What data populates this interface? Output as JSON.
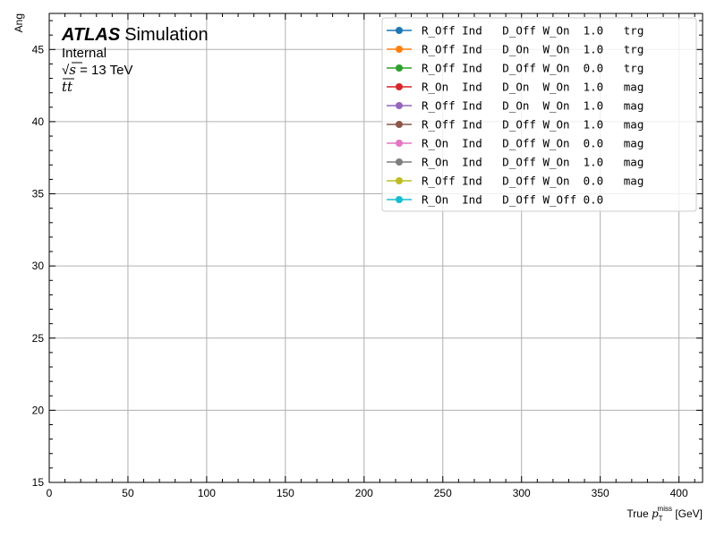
{
  "chart_data": {
    "type": "line",
    "xlabel_prefix": "True ",
    "xlabel_symbol": "p",
    "xlabel_sub": "T",
    "xlabel_sup": "miss",
    "xlabel_suffix": " [GeV]",
    "ylabel": "Ang",
    "xlim": [
      0,
      415
    ],
    "ylim": [
      15,
      47.5
    ],
    "x_ticks": [
      0,
      50,
      100,
      150,
      200,
      250,
      300,
      350,
      400
    ],
    "y_ticks": [
      15,
      20,
      25,
      30,
      35,
      40,
      45
    ],
    "grid": true,
    "legend_position": "top-right",
    "series": [
      {
        "name": "R_Off Ind   D_Off W_On  1.0   trg",
        "color": "#1f77b4",
        "values": []
      },
      {
        "name": "R_Off Ind   D_On  W_On  1.0   trg",
        "color": "#ff7f0e",
        "values": []
      },
      {
        "name": "R_Off Ind   D_Off W_On  0.0   trg",
        "color": "#2ca02c",
        "values": []
      },
      {
        "name": "R_On  Ind   D_On  W_On  1.0   mag",
        "color": "#d62728",
        "values": []
      },
      {
        "name": "R_Off Ind   D_On  W_On  1.0   mag",
        "color": "#9467bd",
        "values": []
      },
      {
        "name": "R_Off Ind   D_Off W_On  1.0   mag",
        "color": "#8c564b",
        "values": []
      },
      {
        "name": "R_On  Ind   D_Off W_On  0.0   mag",
        "color": "#e377c2",
        "values": []
      },
      {
        "name": "R_On  Ind   D_Off W_On  1.0   mag",
        "color": "#7f7f7f",
        "values": []
      },
      {
        "name": "R_Off Ind   D_Off W_On  0.0   mag",
        "color": "#bcbd22",
        "values": []
      },
      {
        "name": "R_On  Ind   D_Off W_Off 0.0",
        "color": "#17becf",
        "values": []
      }
    ]
  },
  "atlas_label": {
    "experiment": "ATLAS",
    "tag": "Simulation",
    "status": "Internal",
    "energy_prefix": "√",
    "energy_symbol": "s",
    "energy_value": " = 13 TeV",
    "process": "tt"
  }
}
